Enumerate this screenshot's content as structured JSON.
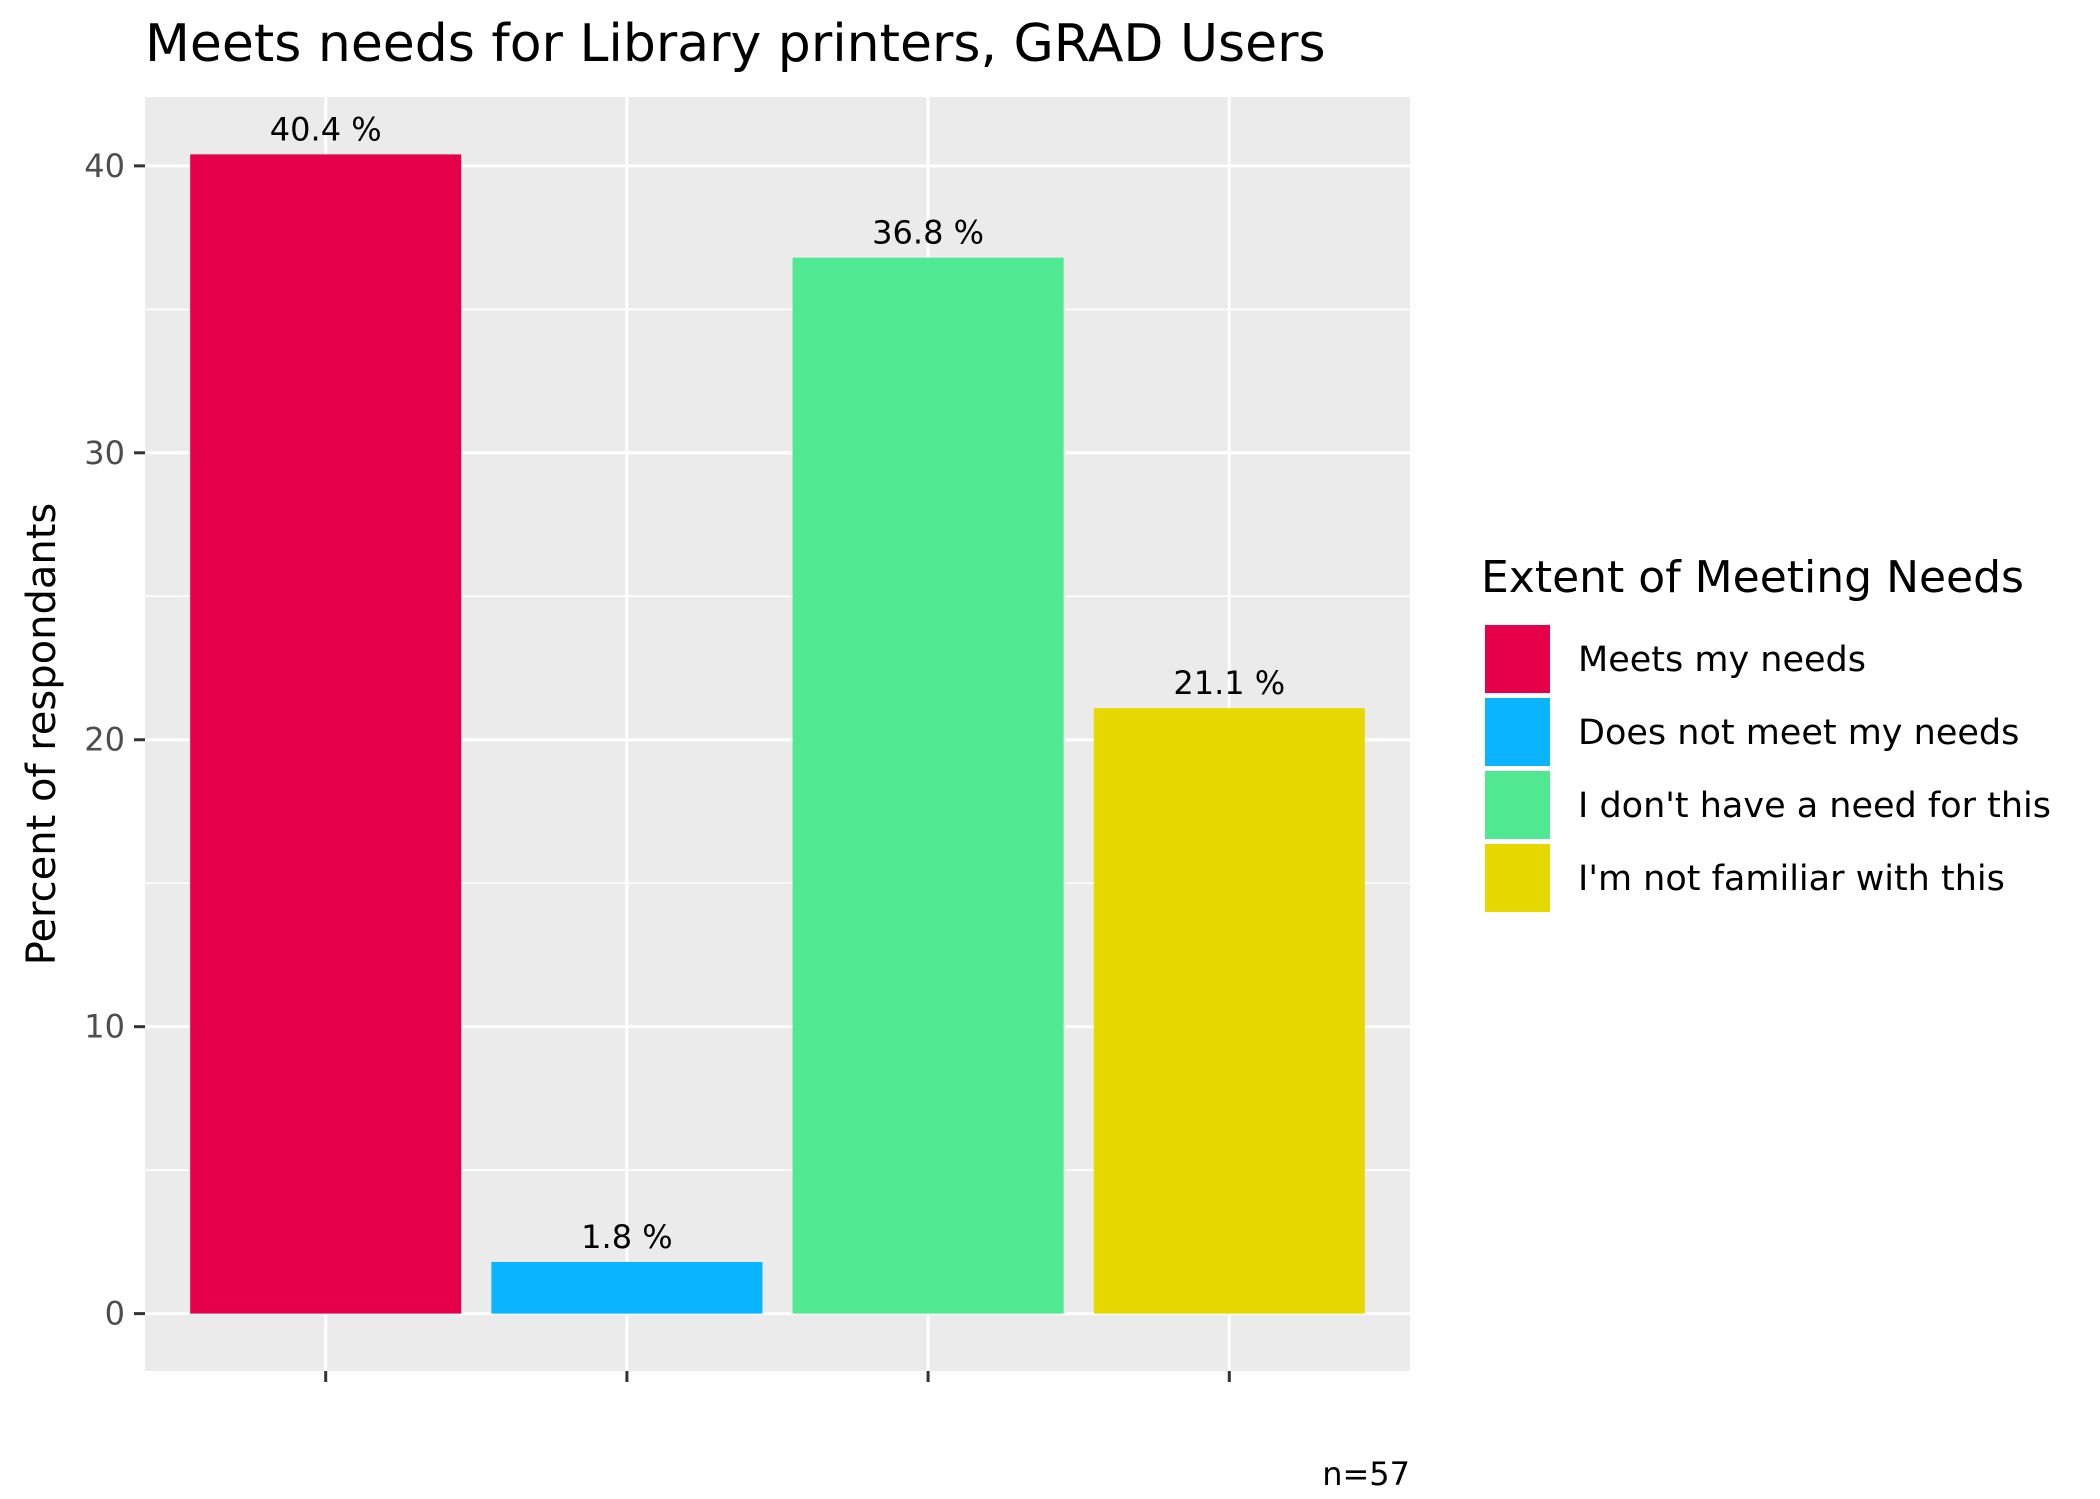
{
  "chart_data": {
    "type": "bar",
    "title": "Meets needs for Library printers, GRAD Users",
    "xlabel": "",
    "ylabel": "Percent of respondants",
    "categories": [
      "Meets my needs",
      "Does not meet my needs",
      "I don't have a need for this",
      "I'm not familiar with this"
    ],
    "values": [
      40.4,
      1.8,
      36.8,
      21.1
    ],
    "data_labels": [
      "40.4 %",
      "1.8 %",
      "36.8 %",
      "21.1 %"
    ],
    "colors": [
      "#E60049",
      "#0BB4FF",
      "#50E991",
      "#E6D800"
    ],
    "ylim": [
      -2,
      42.4
    ],
    "yticks": [
      0,
      10,
      20,
      30,
      40
    ],
    "grid": true,
    "panel_background": "#EBEBEB",
    "legend": {
      "title": "Extent of Meeting Needs",
      "position": "right"
    },
    "caption": "n=57"
  }
}
